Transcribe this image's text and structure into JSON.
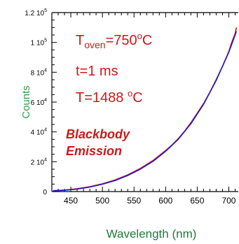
{
  "chart_data": {
    "type": "line",
    "xlabel": "Wavelength (nm)",
    "ylabel": "Counts",
    "xlim": [
      420,
      715
    ],
    "ylim": [
      0,
      120000
    ],
    "x_ticks": [
      450,
      500,
      550,
      600,
      650,
      700
    ],
    "y_ticks": [
      {
        "value": 0,
        "mantissa": "0",
        "exp": ""
      },
      {
        "value": 20000,
        "mantissa": "2 10",
        "exp": "4"
      },
      {
        "value": 40000,
        "mantissa": "4 10",
        "exp": "4"
      },
      {
        "value": 60000,
        "mantissa": "6 10",
        "exp": "4"
      },
      {
        "value": 80000,
        "mantissa": "8 10",
        "exp": "4"
      },
      {
        "value": 100000,
        "mantissa": "1 10",
        "exp": "5"
      },
      {
        "value": 120000,
        "mantissa": "1.2 10",
        "exp": "5"
      }
    ],
    "grid": false,
    "series": [
      {
        "color": "#dd1111",
        "x": [
          422,
          440,
          460,
          480,
          500,
          520,
          540,
          560,
          580,
          600,
          610,
          620,
          630,
          640,
          650,
          660,
          670,
          680,
          690,
          700,
          705,
          710,
          712
        ],
        "y": [
          600,
          1000,
          1900,
          3300,
          5200,
          7800,
          11200,
          15500,
          20800,
          27500,
          31200,
          35500,
          40500,
          46200,
          52500,
          59000,
          66500,
          75000,
          84000,
          94000,
          100500,
          106000,
          110000
        ]
      },
      {
        "color": "#1a1acc",
        "x": [
          422,
          440,
          460,
          480,
          500,
          520,
          540,
          560,
          580,
          600,
          620,
          640,
          660,
          680,
          700,
          710,
          712
        ],
        "y": [
          500,
          900,
          1700,
          3000,
          4900,
          7400,
          10800,
          15000,
          20300,
          27000,
          35000,
          45500,
          58500,
          74500,
          93500,
          105000,
          107500
        ]
      }
    ]
  },
  "annotations": {
    "toven_prefix": "T",
    "toven_sub": "oven",
    "toven_value": "=750",
    "toven_sup": "o",
    "toven_unit": "C",
    "time": "t=1 ms",
    "temp_value": "T=1488 ",
    "temp_sup": "o",
    "temp_unit": "C",
    "label_line1": "Blackbody",
    "label_line2": "Emission"
  },
  "colors": {
    "axis_label": "#2e9c4a",
    "xlabel": "#1f7a3d",
    "annotation": "#cc1a1a",
    "frame": "#000000"
  }
}
